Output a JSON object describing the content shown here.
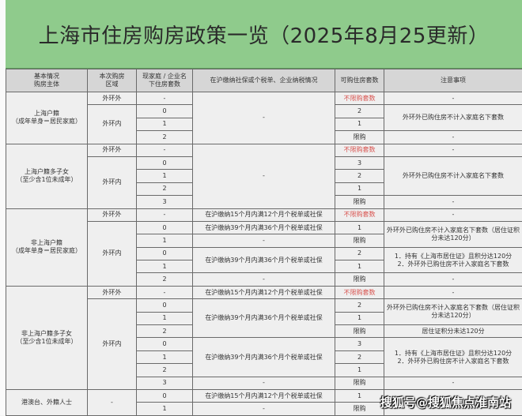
{
  "title": "上海市住房购房政策一览（2025年8月25更新）",
  "colors": {
    "title_band": "#8fcb8c",
    "unlimited_text": "#d9534f",
    "header_bg": "#d6d6d6"
  },
  "headers": [
    "基本情况\n购房主体",
    "本次购房\n区域",
    "现家庭 / 企业名\n下住房套数",
    "在沪缴纳社保或个税单、企业纳税情况",
    "可购住房套数",
    "注意事项"
  ],
  "rows": [
    [
      {
        "t": "上海户籍\n（成年单身＝居民家庭）",
        "rs": 4
      },
      {
        "t": "外环外"
      },
      {
        "t": "-"
      },
      {
        "t": "-",
        "rs": 4
      },
      {
        "t": "不限购套数",
        "red": true
      },
      {
        "t": "-"
      }
    ],
    [
      {
        "t": "外环内",
        "rs": 3
      },
      {
        "t": "0"
      },
      {
        "t": "2"
      },
      {
        "t": "外环外已购住房不计入家庭名下套数",
        "rs": 2
      }
    ],
    [
      {
        "t": "1"
      },
      {
        "t": "1"
      }
    ],
    [
      {
        "t": "2"
      },
      {
        "t": "限购"
      },
      {
        "t": "-"
      }
    ],
    [
      {
        "t": "上海户籍多子女\n（至少含1位未成年）",
        "rs": 5
      },
      {
        "t": "外环外"
      },
      {
        "t": "-"
      },
      {
        "t": "-",
        "rs": 5
      },
      {
        "t": "不限购套数",
        "red": true
      },
      {
        "t": "-"
      }
    ],
    [
      {
        "t": "外环内",
        "rs": 4
      },
      {
        "t": "0"
      },
      {
        "t": "3"
      },
      {
        "t": "外环外已购住房不计入家庭名下套数",
        "rs": 3
      }
    ],
    [
      {
        "t": "1"
      },
      {
        "t": "2"
      }
    ],
    [
      {
        "t": "2"
      },
      {
        "t": "1"
      }
    ],
    [
      {
        "t": "3"
      },
      {
        "t": "限购"
      },
      {
        "t": "-"
      }
    ],
    [
      {
        "t": "非上海户籍\n（成年单身＝居民家庭）",
        "rs": 6
      },
      {
        "t": "外环外"
      },
      {
        "t": "-"
      },
      {
        "t": "在沪缴纳15个月内满12个月个税单或社保"
      },
      {
        "t": "不限购套数",
        "red": true
      },
      {
        "t": "-"
      }
    ],
    [
      {
        "t": "外环内",
        "rs": 5
      },
      {
        "t": "0"
      },
      {
        "t": "在沪缴纳39个月内满36个月个税单或社保"
      },
      {
        "t": "1"
      },
      {
        "t": "外环外已购住房不计入家庭名下套数（居住证积分未达120分）",
        "rs": 2
      }
    ],
    [
      {
        "t": "1"
      },
      {
        "t": "-"
      },
      {
        "t": "限购"
      }
    ],
    [
      {
        "t": "0"
      },
      {
        "t": "在沪缴纳39个月内满36个月个税单或社保",
        "rs": 2
      },
      {
        "t": "2"
      },
      {
        "t": "1．持有《上海市居住证》且积分达120分\n2．外环外已购住房不计入家庭名下套数",
        "rs": 2
      }
    ],
    [
      {
        "t": "1"
      },
      {
        "t": "1"
      }
    ],
    [
      {
        "t": "2"
      },
      {
        "t": "-"
      },
      {
        "t": "限购"
      },
      {
        "t": "-"
      }
    ],
    [
      {
        "t": "非上海户籍多子女\n（至少含1位未成年）",
        "rs": 8
      },
      {
        "t": "外环外"
      },
      {
        "t": "-"
      },
      {
        "t": "在沪缴纳15个月内满12个月个税单或社保"
      },
      {
        "t": "不限购套数",
        "red": true
      },
      {
        "t": "-"
      }
    ],
    [
      {
        "t": "外环内",
        "rs": 7
      },
      {
        "t": "0"
      },
      {
        "t": "在沪缴纳39个月内满36个月个税单或社保",
        "rs": 3
      },
      {
        "t": "2"
      },
      {
        "t": "外环外已购住房不计入家庭名下套数（居住证积分未达120分）",
        "rs": 2
      }
    ],
    [
      {
        "t": "1"
      },
      {
        "t": "1"
      }
    ],
    [
      {
        "t": "2"
      },
      {
        "t": "限购"
      },
      {
        "t": "居住证积分未达120分"
      }
    ],
    [
      {
        "t": "0"
      },
      {
        "t": "在沪缴纳39个月内满36个月个税单或社保",
        "rs": 3
      },
      {
        "t": "3"
      },
      {
        "t": "1．持有《上海市居住证》且积分达120分\n2．外环外已购住房不计入家庭名下套数",
        "rs": 3
      }
    ],
    [
      {
        "t": "1"
      },
      {
        "t": "2"
      }
    ],
    [
      {
        "t": "2"
      },
      {
        "t": "1"
      }
    ],
    [
      {
        "t": "3"
      },
      {
        "t": "-"
      },
      {
        "t": "限购"
      },
      {
        "t": "-"
      }
    ],
    [
      {
        "t": "港澳台、外籍人士",
        "rs": 2
      },
      {
        "t": "-",
        "rs": 2
      },
      {
        "t": "0"
      },
      {
        "t": "在沪缴纳15个月内满12个月个税单或社保"
      },
      {
        "t": "1"
      },
      {
        "t": "",
        "rs": 2
      }
    ],
    [
      {
        "t": "1"
      },
      {
        "t": "-"
      },
      {
        "t": "限购"
      }
    ]
  ],
  "watermark": "搜狐号@搜狐焦点淮南站"
}
